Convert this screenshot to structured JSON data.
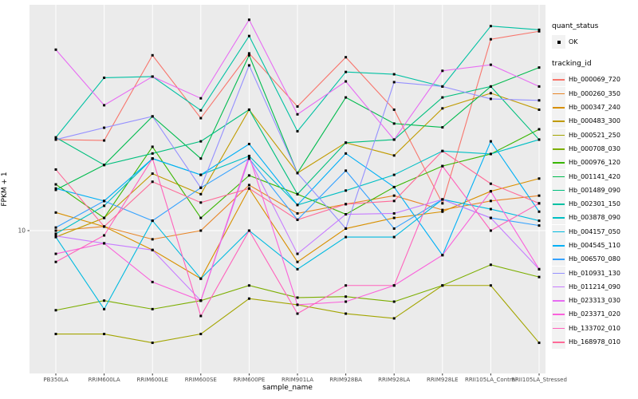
{
  "figure": {
    "y_axis_title": "FPKM + 1",
    "x_axis_title": "sample_name",
    "y_tick_label": "10"
  },
  "legend": {
    "quant_status_title": "quant_status",
    "quant_status_items": [
      {
        "label": "OK",
        "marker": "black-point"
      }
    ],
    "tracking_id_title": "tracking_id"
  },
  "style": {
    "panel_bg": "#EBEBEB",
    "grid_color": "#FFFFFF",
    "tick_text_color": "#4D4D4D",
    "point_color": "#000000",
    "legend_key_bg": "#F2F2F2"
  },
  "chart_data": {
    "type": "line",
    "title": "",
    "xlabel": "sample_name",
    "ylabel": "FPKM + 1",
    "y_scale": "log10",
    "y_tick_labels": [
      "10"
    ],
    "ylim": [
      3,
      90
    ],
    "grid": "white-on-gray, vertical line per category, horizontal line at 10",
    "legend_position": "right",
    "point_marker": "small black square (quant_status = OK)",
    "categories": [
      "PB350LA",
      "RRIM600LA",
      "RRIM600LE",
      "RRIM600SE",
      "RRIM600PE",
      "RRIM901LA",
      "RRIM928BA",
      "RRIM928LA",
      "RRIM928LE",
      "RRII105LA_Control",
      "RRII105LA_Stressed"
    ],
    "series": [
      {
        "name": "Hb_000069_720",
        "color": "#F8766D",
        "values": [
          24,
          23.8,
          54,
          29.5,
          55,
          33,
          53,
          32,
          13,
          63,
          68
        ]
      },
      {
        "name": "Hb_000260_350",
        "color": "#E88526",
        "values": [
          10,
          10.4,
          9.2,
          10,
          15.5,
          11.8,
          12.9,
          14,
          12.2,
          13.3,
          14
        ]
      },
      {
        "name": "Hb_000347_240",
        "color": "#D89000",
        "values": [
          11.9,
          10.4,
          8.3,
          6.3,
          15,
          7.4,
          10.2,
          11.3,
          12,
          14.6,
          16.5
        ]
      },
      {
        "name": "Hb_000483_300",
        "color": "#C09B00",
        "values": [
          9.4,
          11.3,
          17.3,
          14.2,
          32,
          17.4,
          23.3,
          20.6,
          32.4,
          37.5,
          32
        ]
      },
      {
        "name": "Hb_000521_250",
        "color": "#A3A500",
        "values": [
          3.7,
          3.7,
          3.4,
          3.7,
          5.2,
          4.9,
          4.5,
          4.3,
          5.9,
          5.9,
          3.4
        ]
      },
      {
        "name": "Hb_000708_030",
        "color": "#7CAE00",
        "values": [
          4.65,
          5.1,
          4.7,
          5.1,
          5.9,
          5.25,
          5.3,
          5.05,
          5.9,
          7.2,
          6.4
        ]
      },
      {
        "name": "Hb_000976_120",
        "color": "#39B600",
        "values": [
          15.6,
          11.3,
          22.4,
          11.3,
          17,
          14.2,
          11.7,
          15.2,
          18.6,
          20.9,
          26.5
        ]
      },
      {
        "name": "Hb_001141_420",
        "color": "#00BB4E",
        "values": [
          14.8,
          18.8,
          30,
          20,
          54,
          17.4,
          36,
          28,
          27,
          40,
          48
        ]
      },
      {
        "name": "Hb_001489_090",
        "color": "#00BF7D",
        "values": [
          24.5,
          18.8,
          21,
          23.6,
          32,
          14.2,
          23.3,
          24,
          36,
          40,
          24
        ]
      },
      {
        "name": "Hb_002301_150",
        "color": "#00C1A3",
        "values": [
          24.5,
          43.5,
          44,
          31.8,
          65,
          26,
          46,
          45,
          40,
          71.5,
          69
        ]
      },
      {
        "name": "Hb_003878_090",
        "color": "#00BFC4",
        "values": [
          9.7,
          12.7,
          20,
          17.1,
          20.5,
          12.8,
          14.7,
          17.1,
          21.5,
          20.9,
          24
        ]
      },
      {
        "name": "Hb_004157_050",
        "color": "#00BAE0",
        "values": [
          9.4,
          4.7,
          11,
          6.3,
          10,
          6.9,
          9.4,
          9.4,
          13.5,
          12.3,
          11
        ]
      },
      {
        "name": "Hb_004545_110",
        "color": "#00B0F6",
        "values": [
          15,
          13.3,
          20,
          17.1,
          23,
          12.8,
          21,
          15.2,
          7.9,
          23.6,
          12
        ]
      },
      {
        "name": "Hb_006570_080",
        "color": "#35A2FF",
        "values": [
          10.3,
          13.3,
          11,
          15.1,
          20,
          11.1,
          17.8,
          10.2,
          13.5,
          11.3,
          10.5
        ]
      },
      {
        "name": "Hb_010931_130",
        "color": "#9590FF",
        "values": [
          24,
          26.9,
          30,
          15.1,
          49,
          17.4,
          10.2,
          41.7,
          40,
          35.5,
          35
        ]
      },
      {
        "name": "Hb_011214_090",
        "color": "#C77CFF",
        "values": [
          9.5,
          8.85,
          8.3,
          5.1,
          20,
          8,
          11.7,
          11.8,
          13.5,
          11.3,
          6.9
        ]
      },
      {
        "name": "Hb_023313_030",
        "color": "#E76BF3",
        "values": [
          57,
          33.4,
          44,
          35.7,
          76,
          30.6,
          42,
          24,
          46.5,
          49.3,
          40
        ]
      },
      {
        "name": "Hb_023371_020",
        "color": "#FA62DB",
        "values": [
          8,
          8.85,
          6.1,
          5.1,
          20.5,
          4.9,
          5.05,
          5.9,
          7.9,
          14.6,
          6.9
        ]
      },
      {
        "name": "Hb_133702_010",
        "color": "#FF62BC",
        "values": [
          7.4,
          9.55,
          20,
          4.4,
          10,
          4.5,
          5.9,
          5.9,
          18.6,
          10,
          13
        ]
      },
      {
        "name": "Hb_168978_010",
        "color": "#FF6A98",
        "values": [
          18,
          10.4,
          16,
          13.1,
          15,
          11.1,
          12.9,
          13.3,
          21.5,
          15.7,
          13
        ]
      }
    ]
  }
}
